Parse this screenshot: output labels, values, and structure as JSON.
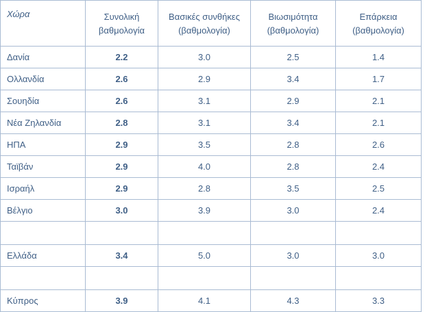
{
  "table": {
    "headers": [
      {
        "line1": "Χώρα",
        "line2": ""
      },
      {
        "line1": "Συνολική",
        "line2": "βαθμολογία"
      },
      {
        "line1": "Βασικές συνθήκες",
        "line2": "(βαθμολογία)"
      },
      {
        "line1": "Βιωσιμότητα",
        "line2": "(βαθμολογία)"
      },
      {
        "line1": "Επάρκεια",
        "line2": "(βαθμολογία)"
      }
    ],
    "rows": [
      {
        "country": "Δανία",
        "overall": "2.2",
        "basic": "3.0",
        "sustainability": "2.5",
        "adequacy": "1.4"
      },
      {
        "country": "Ολλανδία",
        "overall": "2.6",
        "basic": "2.9",
        "sustainability": "3.4",
        "adequacy": "1.7"
      },
      {
        "country": "Σουηδία",
        "overall": "2.6",
        "basic": "3.1",
        "sustainability": "2.9",
        "adequacy": "2.1"
      },
      {
        "country": "Νέα Ζηλανδία",
        "overall": "2.8",
        "basic": "3.1",
        "sustainability": "3.4",
        "adequacy": "2.1"
      },
      {
        "country": "ΗΠΑ",
        "overall": "2.9",
        "basic": "3.5",
        "sustainability": "2.8",
        "adequacy": "2.6"
      },
      {
        "country": "Ταϊβάν",
        "overall": "2.9",
        "basic": "4.0",
        "sustainability": "2.8",
        "adequacy": "2.4"
      },
      {
        "country": "Ισραήλ",
        "overall": "2.9",
        "basic": "2.8",
        "sustainability": "3.5",
        "adequacy": "2.5"
      },
      {
        "country": "Βέλγιο",
        "overall": "3.0",
        "basic": "3.9",
        "sustainability": "3.0",
        "adequacy": "2.4"
      },
      {
        "country": "",
        "overall": "",
        "basic": "",
        "sustainability": "",
        "adequacy": ""
      },
      {
        "country": "Ελλάδα",
        "overall": "3.4",
        "basic": "5.0",
        "sustainability": "3.0",
        "adequacy": "3.0"
      },
      {
        "country": "",
        "overall": "",
        "basic": "",
        "sustainability": "",
        "adequacy": ""
      },
      {
        "country": "Κύπρος",
        "overall": "3.9",
        "basic": "4.1",
        "sustainability": "4.3",
        "adequacy": "3.3"
      }
    ]
  },
  "colors": {
    "text": "#3f5f86",
    "border": "#a9bbd3"
  }
}
